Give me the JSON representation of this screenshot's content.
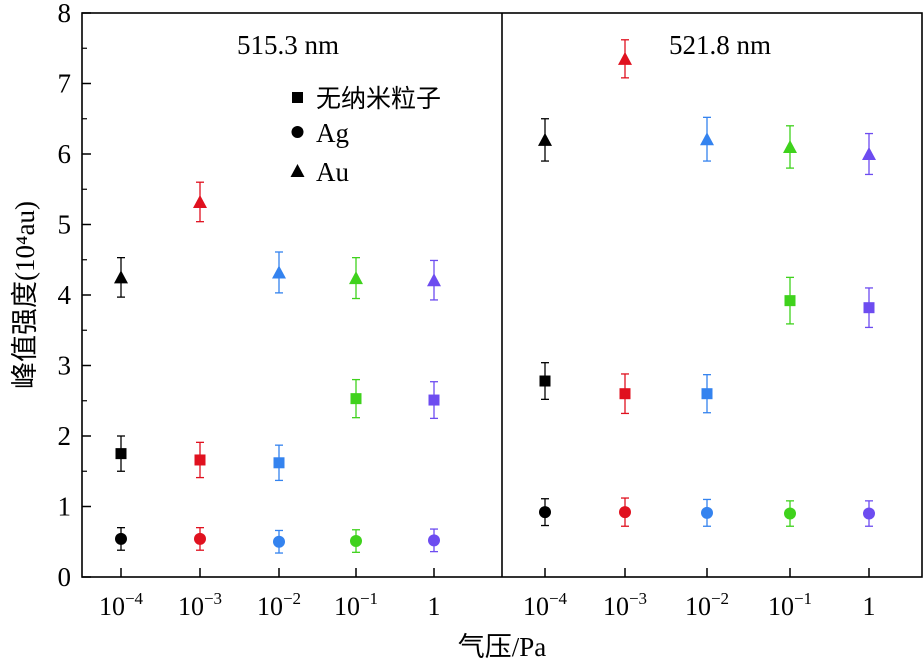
{
  "chart_data": {
    "type": "scatter",
    "ylabel": "峰值强度(10⁴au)",
    "xlabel": "气压/Pa",
    "ylim": [
      0,
      8
    ],
    "y_ticks": [
      "0",
      "1",
      "2",
      "3",
      "4",
      "5",
      "6",
      "7",
      "8"
    ],
    "x_categories": [
      {
        "base": "10",
        "exp": "−4"
      },
      {
        "base": "10",
        "exp": "−3"
      },
      {
        "base": "10",
        "exp": "−2"
      },
      {
        "base": "10",
        "exp": "−1"
      },
      {
        "base": "1",
        "exp": ""
      }
    ],
    "legend": {
      "placement": "top-center of left panel",
      "entries": [
        {
          "label": "无纳米粒子",
          "marker": "square"
        },
        {
          "label": "Ag",
          "marker": "circle"
        },
        {
          "label": "Au",
          "marker": "triangle"
        }
      ]
    },
    "category_colors": [
      "#000000",
      "#e0111f",
      "#3483ef",
      "#3fd21c",
      "#6d4cf0"
    ],
    "panels": [
      {
        "title": "515.3 nm",
        "series": [
          {
            "marker": "square",
            "values": [
              1.75,
              1.66,
              1.62,
              2.53,
              2.51
            ],
            "errors": [
              0.25,
              0.25,
              0.25,
              0.27,
              0.26
            ]
          },
          {
            "marker": "circle",
            "values": [
              0.54,
              0.54,
              0.5,
              0.51,
              0.52
            ],
            "errors": [
              0.16,
              0.16,
              0.16,
              0.16,
              0.16
            ]
          },
          {
            "marker": "triangle",
            "values": [
              4.25,
              5.32,
              4.32,
              4.24,
              4.21
            ],
            "errors": [
              0.28,
              0.28,
              0.29,
              0.29,
              0.28
            ]
          }
        ]
      },
      {
        "title": "521.8 nm",
        "series": [
          {
            "marker": "square",
            "values": [
              2.78,
              2.6,
              2.6,
              3.92,
              3.82
            ],
            "errors": [
              0.26,
              0.28,
              0.27,
              0.33,
              0.28
            ]
          },
          {
            "marker": "circle",
            "values": [
              0.92,
              0.92,
              0.91,
              0.9,
              0.9
            ],
            "errors": [
              0.19,
              0.2,
              0.19,
              0.18,
              0.18
            ]
          },
          {
            "marker": "triangle",
            "values": [
              6.2,
              7.35,
              6.21,
              6.1,
              6.0
            ],
            "errors": [
              0.3,
              0.27,
              0.31,
              0.3,
              0.29
            ]
          }
        ]
      }
    ]
  }
}
